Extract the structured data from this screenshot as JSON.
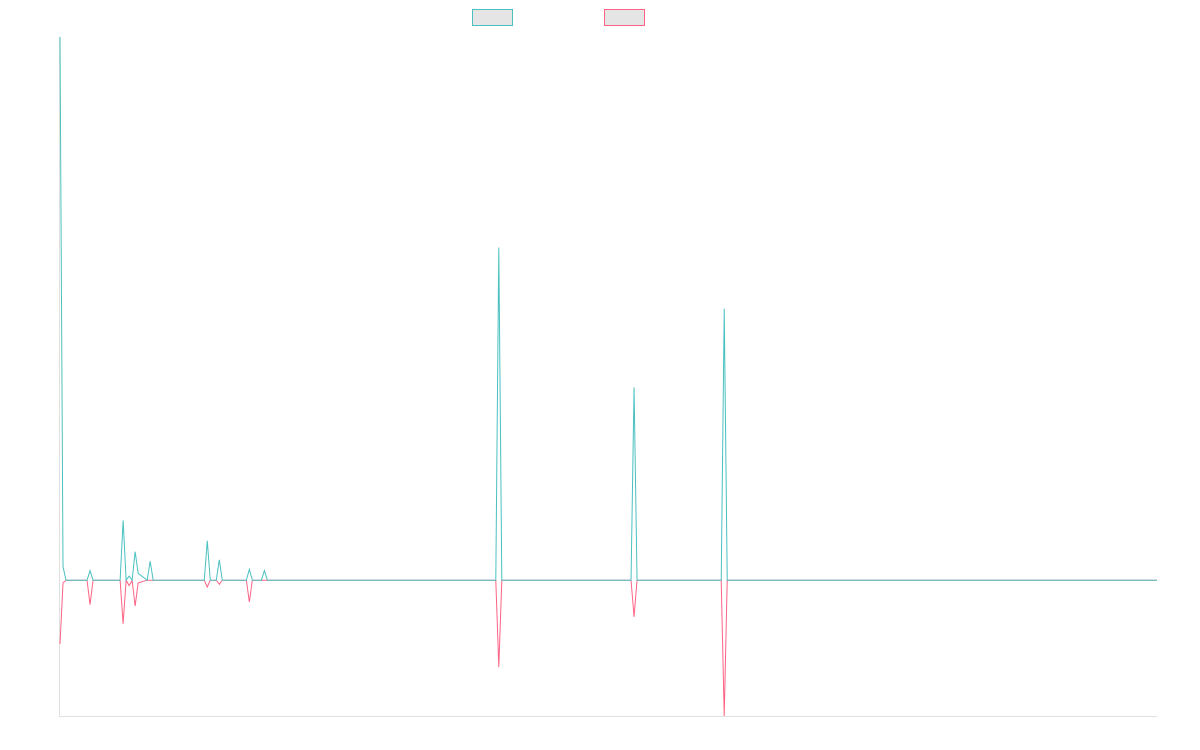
{
  "chart_data": {
    "type": "line",
    "xlim": [
      0,
      365
    ],
    "ylim": [
      -1,
      4
    ],
    "x": [
      0,
      1,
      2,
      9,
      10,
      11,
      20,
      21,
      22,
      23,
      24,
      25,
      26,
      29,
      30,
      31,
      48,
      49,
      50,
      52,
      53,
      54,
      62,
      63,
      64,
      67,
      68,
      69,
      145,
      146,
      147,
      190,
      191,
      192,
      220,
      221,
      222,
      365
    ],
    "series": [
      {
        "color": "#4bc0c0",
        "values": [
          4.0,
          0.1,
          0,
          0,
          0.07,
          0,
          0,
          0.44,
          0,
          0.03,
          0,
          0.21,
          0.05,
          0,
          0.14,
          0,
          0,
          0.29,
          0,
          0,
          0.15,
          0,
          0,
          0.08,
          0,
          0,
          0.07,
          0,
          0,
          2.45,
          0,
          0,
          1.42,
          0,
          0,
          2.0,
          0,
          0
        ]
      },
      {
        "color": "#ff6384",
        "values": [
          -0.47,
          -0.02,
          0,
          0,
          -0.18,
          0,
          0,
          -0.32,
          0,
          -0.04,
          0,
          -0.19,
          -0.02,
          0,
          0,
          0,
          0,
          -0.05,
          0,
          0,
          -0.03,
          0,
          0,
          -0.16,
          0,
          0,
          0,
          0,
          0,
          -0.64,
          0,
          0,
          -0.27,
          0,
          0,
          -1.0,
          0,
          0
        ]
      }
    ]
  }
}
